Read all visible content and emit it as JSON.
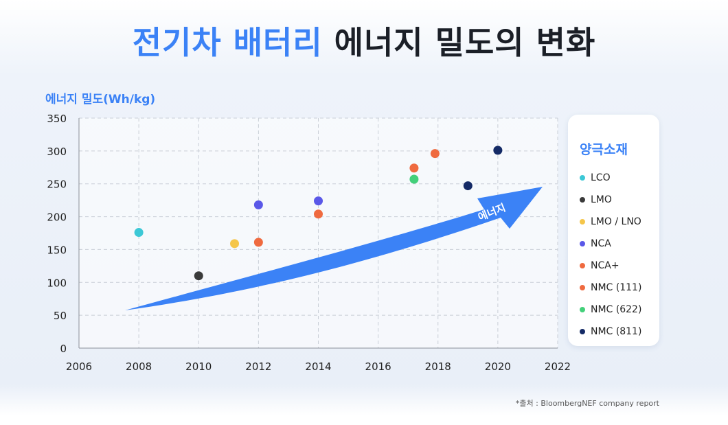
{
  "title": {
    "highlight": "전기차 배터리",
    "rest": "에너지 밀도의 변화"
  },
  "chart_data": {
    "type": "scatter",
    "title": "전기차 배터리 에너지 밀도의 변화",
    "ylabel": "에너지 밀도(Wh/kg)",
    "xlabel": "",
    "xlim": [
      2006,
      2022
    ],
    "ylim": [
      0,
      350
    ],
    "xticks": [
      "2006",
      "2008",
      "2010",
      "2012",
      "2014",
      "2016",
      "2018",
      "2020",
      "2022"
    ],
    "yticks": [
      "0",
      "50",
      "100",
      "150",
      "200",
      "250",
      "300",
      "350"
    ],
    "grid": true,
    "legend_title": "양극소재",
    "legend_position": "right",
    "series": [
      {
        "name": "LCO",
        "color": "#3cc8d6",
        "points": [
          {
            "x": 2008,
            "y": 176
          }
        ]
      },
      {
        "name": "LMO",
        "color": "#3a3a3a",
        "points": [
          {
            "x": 2010,
            "y": 110
          }
        ]
      },
      {
        "name": "LMO / LNO",
        "color": "#f5c64a",
        "points": [
          {
            "x": 2011.2,
            "y": 159
          }
        ]
      },
      {
        "name": "NCA",
        "color": "#5a58e8",
        "points": [
          {
            "x": 2012,
            "y": 218
          },
          {
            "x": 2014,
            "y": 224
          }
        ]
      },
      {
        "name": "NCA+",
        "color": "#ef6a3f",
        "points": [
          {
            "x": 2012,
            "y": 161
          },
          {
            "x": 2014,
            "y": 204
          }
        ]
      },
      {
        "name": "NMC (111)",
        "color": "#ef6a3f",
        "points": [
          {
            "x": 2017.2,
            "y": 274
          },
          {
            "x": 2017.9,
            "y": 296
          }
        ]
      },
      {
        "name": "NMC (622)",
        "color": "#43d07a",
        "points": [
          {
            "x": 2017.2,
            "y": 257
          }
        ]
      },
      {
        "name": "NMC (811)",
        "color": "#142a66",
        "points": [
          {
            "x": 2019,
            "y": 247
          },
          {
            "x": 2020,
            "y": 301
          }
        ]
      }
    ],
    "annotation": "에너지",
    "arrow_color": "#3b82f6"
  },
  "source": "*출처 : BloombergNEF company report"
}
